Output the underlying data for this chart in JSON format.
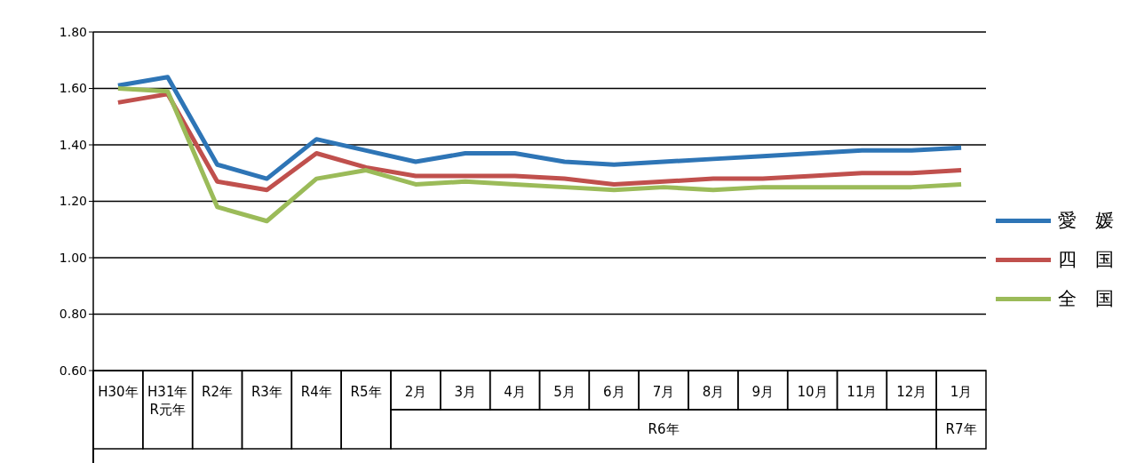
{
  "chart_data": {
    "type": "line",
    "categories": [
      "H30年",
      "H31年\nR元年",
      "R2年",
      "R3年",
      "R4年",
      "R5年",
      "2月",
      "3月",
      "4月",
      "5月",
      "6月",
      "7月",
      "8月",
      "9月",
      "10月",
      "11月",
      "12月",
      "1月"
    ],
    "series": [
      {
        "name": "愛　媛",
        "color": "#2e75b6",
        "values": [
          1.61,
          1.64,
          1.33,
          1.28,
          1.42,
          1.38,
          1.34,
          1.37,
          1.37,
          1.34,
          1.33,
          1.34,
          1.35,
          1.36,
          1.37,
          1.38,
          1.38,
          1.39
        ]
      },
      {
        "name": "四　国",
        "color": "#c0504d",
        "values": [
          1.55,
          1.58,
          1.27,
          1.24,
          1.37,
          1.32,
          1.29,
          1.29,
          1.29,
          1.28,
          1.26,
          1.27,
          1.28,
          1.28,
          1.29,
          1.3,
          1.3,
          1.31
        ]
      },
      {
        "name": "全　国",
        "color": "#9bbb59",
        "values": [
          1.6,
          1.59,
          1.18,
          1.13,
          1.28,
          1.31,
          1.26,
          1.27,
          1.26,
          1.25,
          1.24,
          1.25,
          1.24,
          1.25,
          1.25,
          1.25,
          1.25,
          1.26
        ]
      }
    ],
    "ylim": [
      0.6,
      1.8
    ],
    "yticks": [
      {
        "value": 0.6,
        "label": "0.60"
      },
      {
        "value": 0.8,
        "label": "0.80"
      },
      {
        "value": 1.0,
        "label": "1.00"
      },
      {
        "value": 1.2,
        "label": "1.20"
      },
      {
        "value": 1.4,
        "label": "1.40"
      },
      {
        "value": 1.6,
        "label": "1.60"
      },
      {
        "value": 1.8,
        "label": "1.80"
      }
    ],
    "grid": "y",
    "legend": "right",
    "marker": "none",
    "line_style": "solid",
    "annotations": [
      "R6年",
      "R7年"
    ]
  }
}
